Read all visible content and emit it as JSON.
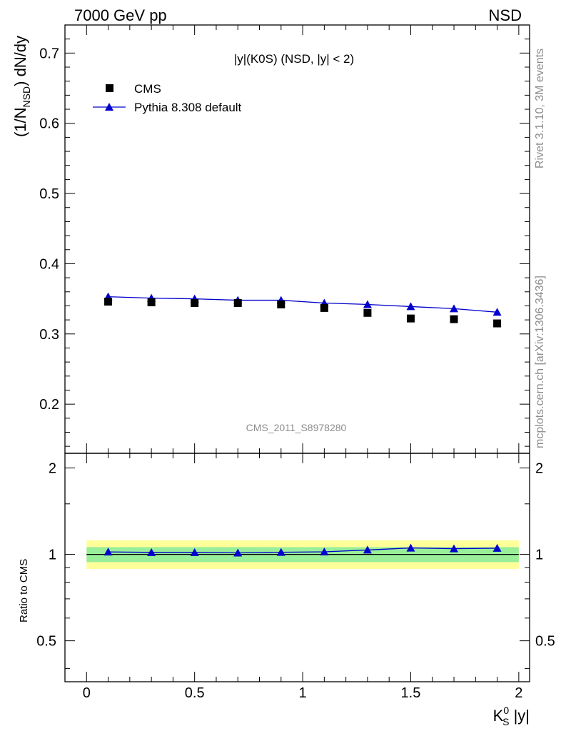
{
  "header": {
    "left": "7000 GeV pp",
    "right": "NSD"
  },
  "side_labels": {
    "rivet": "Rivet 3.1.10,  3M events",
    "source": "mcplots.cern.ch [arXiv:1306.3436]"
  },
  "watermark": "CMS_2011_S8978280",
  "chart_data": [
    {
      "type": "scatter",
      "title": "|y|(K0S) (NSD, |y| < 2)",
      "ylabel": "(1/N_NSD) dN/dy",
      "xlim": [
        -0.1,
        2.05
      ],
      "ylim": [
        0.13,
        0.74
      ],
      "yticks": [
        0.2,
        0.3,
        0.4,
        0.5,
        0.6,
        0.7
      ],
      "ytick_labels": [
        "0.2",
        "0.3",
        "0.4",
        "0.5",
        "0.6",
        "0.7"
      ],
      "legend_position": "top-left",
      "x": [
        0.1,
        0.3,
        0.5,
        0.7,
        0.9,
        1.1,
        1.3,
        1.5,
        1.7,
        1.9
      ],
      "series": [
        {
          "name": "CMS",
          "marker": "square",
          "color": "#000000",
          "values": [
            0.346,
            0.345,
            0.344,
            0.344,
            0.342,
            0.337,
            0.33,
            0.322,
            0.321,
            0.315
          ]
        },
        {
          "name": "Pythia 8.308 default",
          "marker": "triangle",
          "color": "#0000cc",
          "values": [
            0.353,
            0.351,
            0.35,
            0.348,
            0.348,
            0.344,
            0.342,
            0.339,
            0.336,
            0.331
          ]
        }
      ]
    },
    {
      "type": "line",
      "ylabel": "Ratio to CMS",
      "xlabel_main": "K",
      "xlabel_sup": "0",
      "xlabel_sub": "S",
      "xlabel_tail": " |y|",
      "xlim": [
        -0.1,
        2.05
      ],
      "ylim": [
        0.36,
        2.25
      ],
      "yscale": "log",
      "yticks": [
        0.5,
        1,
        2
      ],
      "ytick_labels": [
        "0.5",
        "1",
        "2"
      ],
      "xticks": [
        0,
        0.5,
        1,
        1.5,
        2
      ],
      "xtick_labels": [
        "0",
        "0.5",
        "1",
        "1.5",
        "2"
      ],
      "reference_line": 1,
      "bands": [
        {
          "color": "#ffff99",
          "lower": 0.89,
          "upper": 1.12
        },
        {
          "color": "#99ee99",
          "lower": 0.94,
          "upper": 1.06
        }
      ],
      "x": [
        0.1,
        0.3,
        0.5,
        0.7,
        0.9,
        1.1,
        1.3,
        1.5,
        1.7,
        1.9
      ],
      "series": [
        {
          "name": "Pythia 8.308 default",
          "color": "#0000cc",
          "values": [
            1.02,
            1.016,
            1.016,
            1.012,
            1.017,
            1.021,
            1.036,
            1.053,
            1.047,
            1.051
          ]
        }
      ]
    }
  ]
}
